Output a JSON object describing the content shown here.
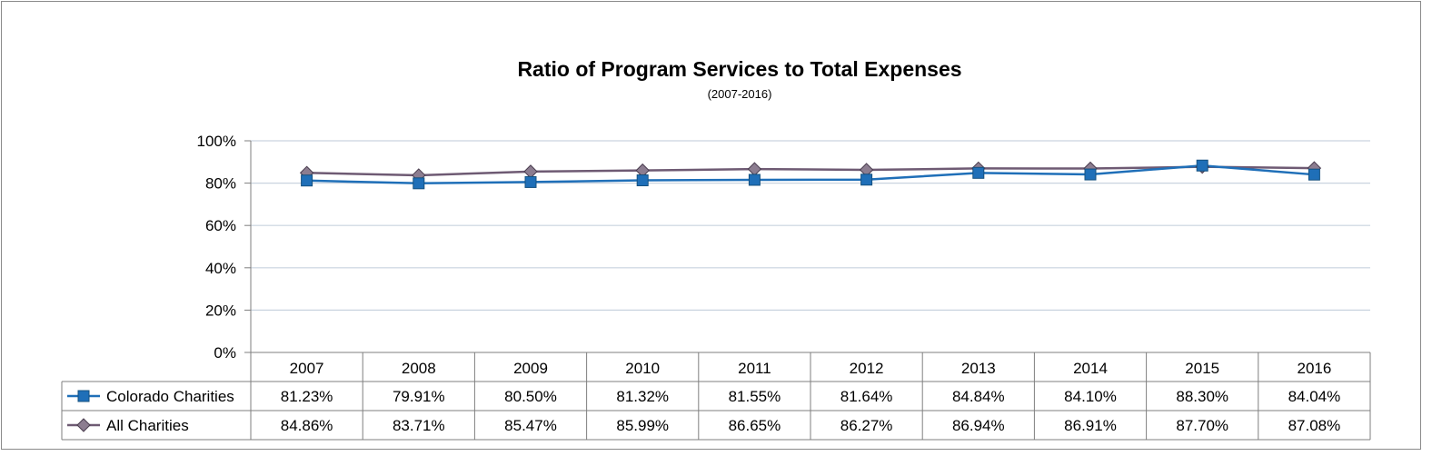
{
  "chart_data": {
    "type": "line",
    "title": "Ratio of Program Services to Total Expenses",
    "subtitle": "(2007-2016)",
    "categories": [
      "2007",
      "2008",
      "2009",
      "2010",
      "2011",
      "2012",
      "2013",
      "2014",
      "2015",
      "2016"
    ],
    "y_ticks": [
      "0%",
      "20%",
      "40%",
      "60%",
      "80%",
      "100%"
    ],
    "ylim": [
      0,
      100
    ],
    "grid": true,
    "legend": "data-table",
    "series": [
      {
        "name": "Colorado Charities",
        "color": "#1F6FB8",
        "marker": "square",
        "values": [
          81.23,
          79.91,
          80.5,
          81.32,
          81.55,
          81.64,
          84.84,
          84.1,
          88.3,
          84.04
        ],
        "labels": [
          "81.23%",
          "79.91%",
          "80.50%",
          "81.32%",
          "81.55%",
          "81.64%",
          "84.84%",
          "84.10%",
          "88.30%",
          "84.04%"
        ]
      },
      {
        "name": "All Charities",
        "color": "#6E5A73",
        "marker": "diamond",
        "values": [
          84.86,
          83.71,
          85.47,
          85.99,
          86.65,
          86.27,
          86.94,
          86.91,
          87.7,
          87.08
        ],
        "labels": [
          "84.86%",
          "83.71%",
          "85.47%",
          "85.99%",
          "86.65%",
          "86.27%",
          "86.94%",
          "86.91%",
          "87.70%",
          "87.08%"
        ]
      }
    ]
  }
}
